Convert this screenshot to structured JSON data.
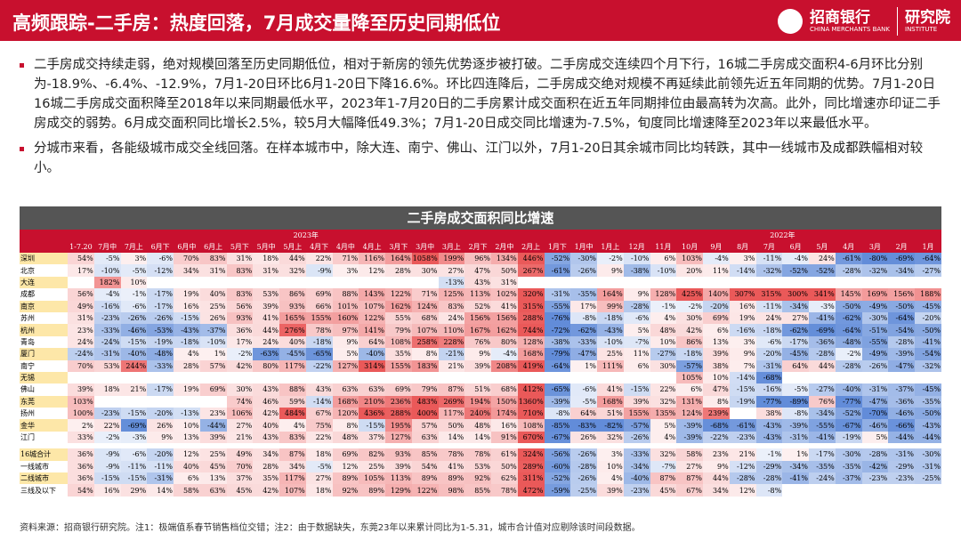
{
  "header": {
    "title": "高频跟踪-二手房：热度回落，7月成交量降至历史同期低位",
    "logo": {
      "name": "招商银行",
      "name_en": "CHINA MERCHANTS BANK",
      "dept": "研究院",
      "dept_en": "INSTITUTE"
    }
  },
  "bullets": [
    "二手房成交持续走弱，绝对规模回落至历史同期低位，相对于新房的领先优势逐步被打破。二手房成交连续四个月下行，16城二手房成交面积4-6月环比分别为-18.9%、-6.4%、-12.9%，7月1-20日环比6月1-20日下降16.6%。环比四连降后，二手房成交绝对规模不再延续此前领先近五年同期的优势。7月1-20日16城二手房成交面积降至2018年以来同期最低水平，2023年1-7月20日的二手房累计成交面积在近五年同期排位由最高转为次高。此外，同比增速亦印证二手房成交的弱势。6月成交面积同比增长2.5%，较5月大幅降低49.3%；7月1-20日成交同比增速为-7.5%，旬度同比增速降至2023年以来最低水平。",
    "分城市来看，各能级城市成交全线回落。在样本城市中，除大连、南宁、佛山、江门以外，7月1-20日其余城市同比均转跌，其中一线城市及成都跌幅相对较小。"
  ],
  "table": {
    "title": "二手房成交面积同比增速",
    "years": [
      "2023年",
      "2022年"
    ],
    "columns": [
      "1-7.20",
      "7月中",
      "7月上",
      "6月下",
      "6月中",
      "6月上",
      "5月下",
      "5月中",
      "5月上",
      "4月下",
      "4月中",
      "4月上",
      "3月下",
      "3月中",
      "3月上",
      "2月下",
      "2月中",
      "2月上",
      "1月下",
      "1月中",
      "1月上",
      "12月",
      "11月",
      "10月",
      "9月",
      "8月",
      "7月",
      "6月",
      "5月",
      "4月",
      "3月",
      "2月",
      "1月"
    ],
    "rows": [
      {
        "name": "深圳",
        "cells": [
          "54%",
          "-5%",
          "3%",
          "-6%",
          "70%",
          "83%",
          "31%",
          "18%",
          "44%",
          "22%",
          "71%",
          "116%",
          "164%",
          "1058%",
          "199%",
          "96%",
          "134%",
          "446%",
          "-52%",
          "-30%",
          "-2%",
          "-10%",
          "6%",
          "103%",
          "-4%",
          "3%",
          "-11%",
          "-4%",
          "24%",
          "-61%",
          "-80%",
          "-69%",
          "-64%"
        ]
      },
      {
        "name": "北京",
        "cells": [
          "17%",
          "-10%",
          "-5%",
          "-12%",
          "34%",
          "31%",
          "83%",
          "31%",
          "32%",
          "-9%",
          "3%",
          "12%",
          "28%",
          "30%",
          "27%",
          "47%",
          "50%",
          "267%",
          "-61%",
          "-26%",
          "9%",
          "-38%",
          "-10%",
          "20%",
          "11%",
          "-14%",
          "-32%",
          "-52%",
          "-52%",
          "-28%",
          "-32%",
          "-34%",
          "-27%"
        ]
      },
      {
        "name": "大连",
        "cells": [
          "",
          "182%",
          "10%",
          "",
          "",
          "",
          "",
          "",
          "",
          "",
          "",
          "",
          "",
          "",
          "-13%",
          "43%",
          "31%",
          "",
          "",
          "",
          "",
          "",
          "",
          "",
          "",
          "",
          "",
          "",
          "",
          "",
          "",
          "",
          ""
        ]
      },
      {
        "name": "成都",
        "cells": [
          "56%",
          "-4%",
          "-1%",
          "-17%",
          "19%",
          "40%",
          "83%",
          "53%",
          "86%",
          "69%",
          "88%",
          "143%",
          "122%",
          "71%",
          "125%",
          "113%",
          "102%",
          "320%",
          "-31%",
          "-35%",
          "164%",
          "9%",
          "128%",
          "425%",
          "140%",
          "307%",
          "315%",
          "300%",
          "341%",
          "145%",
          "169%",
          "156%",
          "188%"
        ]
      },
      {
        "name": "南京",
        "cells": [
          "49%",
          "-16%",
          "-6%",
          "-17%",
          "16%",
          "25%",
          "56%",
          "39%",
          "93%",
          "66%",
          "101%",
          "107%",
          "162%",
          "124%",
          "83%",
          "52%",
          "41%",
          "315%",
          "-55%",
          "17%",
          "99%",
          "-28%",
          "-1%",
          "-2%",
          "-20%",
          "16%",
          "-11%",
          "-34%",
          "-3%",
          "-50%",
          "-49%",
          "-50%",
          "-45%"
        ]
      },
      {
        "name": "苏州",
        "cells": [
          "31%",
          "-23%",
          "-26%",
          "-26%",
          "-15%",
          "26%",
          "93%",
          "41%",
          "165%",
          "155%",
          "160%",
          "122%",
          "55%",
          "68%",
          "24%",
          "156%",
          "156%",
          "288%",
          "-76%",
          "-8%",
          "-18%",
          "-6%",
          "4%",
          "30%",
          "69%",
          "19%",
          "24%",
          "27%",
          "-41%",
          "-62%",
          "-30%",
          "-64%",
          "-20%"
        ]
      },
      {
        "name": "杭州",
        "cells": [
          "23%",
          "-33%",
          "-46%",
          "-53%",
          "-43%",
          "-37%",
          "36%",
          "44%",
          "276%",
          "78%",
          "97%",
          "141%",
          "79%",
          "107%",
          "110%",
          "167%",
          "162%",
          "744%",
          "-72%",
          "-62%",
          "-43%",
          "5%",
          "48%",
          "42%",
          "6%",
          "-16%",
          "-18%",
          "-62%",
          "-69%",
          "-64%",
          "-51%",
          "-54%",
          "-50%"
        ]
      },
      {
        "name": "青岛",
        "cells": [
          "24%",
          "-24%",
          "-15%",
          "-19%",
          "-18%",
          "-10%",
          "17%",
          "24%",
          "40%",
          "-18%",
          "9%",
          "64%",
          "108%",
          "258%",
          "228%",
          "76%",
          "80%",
          "128%",
          "-38%",
          "-33%",
          "-10%",
          "-7%",
          "10%",
          "86%",
          "13%",
          "3%",
          "-6%",
          "-17%",
          "-36%",
          "-48%",
          "-55%",
          "-28%",
          "-41%"
        ]
      },
      {
        "name": "厦门",
        "cells": [
          "-24%",
          "-31%",
          "-40%",
          "-48%",
          "4%",
          "1%",
          "-2%",
          "-63%",
          "-45%",
          "-65%",
          "5%",
          "-40%",
          "35%",
          "8%",
          "-21%",
          "9%",
          "-4%",
          "168%",
          "-79%",
          "-47%",
          "25%",
          "11%",
          "-27%",
          "-18%",
          "39%",
          "9%",
          "-20%",
          "-45%",
          "-28%",
          "-2%",
          "-49%",
          "-39%",
          "-54%"
        ]
      },
      {
        "name": "南宁",
        "cells": [
          "70%",
          "53%",
          "244%",
          "-33%",
          "28%",
          "57%",
          "42%",
          "80%",
          "117%",
          "-22%",
          "127%",
          "314%",
          "155%",
          "183%",
          "21%",
          "39%",
          "208%",
          "419%",
          "-64%",
          "1%",
          "111%",
          "6%",
          "30%",
          "-57%",
          "38%",
          "7%",
          "-31%",
          "64%",
          "44%",
          "-28%",
          "-26%",
          "-47%",
          "-32%"
        ]
      },
      {
        "name": "无锡",
        "cells": [
          "",
          "",
          "",
          "",
          "",
          "",
          "",
          "",
          "",
          "",
          "",
          "",
          "",
          "",
          "",
          "",
          "",
          "",
          "",
          "",
          "",
          "",
          "",
          "105%",
          "10%",
          "-14%",
          "-68%",
          "",
          "",
          "",
          "",
          "",
          ""
        ]
      },
      {
        "name": "佛山",
        "cells": [
          "39%",
          "18%",
          "21%",
          "-17%",
          "19%",
          "69%",
          "30%",
          "43%",
          "88%",
          "43%",
          "63%",
          "63%",
          "69%",
          "79%",
          "87%",
          "51%",
          "68%",
          "412%",
          "-65%",
          "-6%",
          "41%",
          "-15%",
          "22%",
          "6%",
          "47%",
          "-15%",
          "-16%",
          "-5%",
          "-27%",
          "-40%",
          "-31%",
          "-37%",
          "-45%"
        ]
      },
      {
        "name": "东莞",
        "cells": [
          "103%",
          "",
          "",
          "",
          "",
          "",
          "74%",
          "46%",
          "59%",
          "-14%",
          "168%",
          "210%",
          "236%",
          "483%",
          "269%",
          "194%",
          "150%",
          "1360%",
          "-39%",
          "-5%",
          "168%",
          "39%",
          "32%",
          "131%",
          "8%",
          "-19%",
          "-77%",
          "-89%",
          "76%",
          "-77%",
          "-47%",
          "-36%",
          "-35%"
        ]
      },
      {
        "name": "扬州",
        "cells": [
          "100%",
          "-23%",
          "-15%",
          "-20%",
          "-13%",
          "23%",
          "106%",
          "42%",
          "484%",
          "67%",
          "120%",
          "436%",
          "288%",
          "400%",
          "117%",
          "240%",
          "174%",
          "710%",
          "-8%",
          "64%",
          "51%",
          "155%",
          "135%",
          "124%",
          "239%",
          "",
          "38%",
          "-8%",
          "-34%",
          "-52%",
          "-70%",
          "-46%",
          "-50%"
        ]
      },
      {
        "name": "金华",
        "cells": [
          "2%",
          "22%",
          "-69%",
          "26%",
          "10%",
          "-44%",
          "27%",
          "40%",
          "4%",
          "75%",
          "8%",
          "-15%",
          "195%",
          "57%",
          "50%",
          "48%",
          "16%",
          "108%",
          "-85%",
          "-83%",
          "-82%",
          "-57%",
          "5%",
          "-39%",
          "-68%",
          "-61%",
          "-43%",
          "-39%",
          "-55%",
          "-67%",
          "-46%",
          "-66%",
          "-43%"
        ]
      },
      {
        "name": "江门",
        "cells": [
          "33%",
          "-2%",
          "-3%",
          "9%",
          "13%",
          "39%",
          "21%",
          "43%",
          "83%",
          "22%",
          "48%",
          "37%",
          "127%",
          "63%",
          "14%",
          "14%",
          "91%",
          "670%",
          "-67%",
          "26%",
          "32%",
          "-26%",
          "4%",
          "-39%",
          "-22%",
          "-23%",
          "-43%",
          "-31%",
          "-41%",
          "-19%",
          "5%",
          "-44%",
          "-44%"
        ]
      },
      {
        "name": "16城合计",
        "cells": [
          "36%",
          "-9%",
          "-6%",
          "-20%",
          "12%",
          "25%",
          "49%",
          "34%",
          "87%",
          "18%",
          "69%",
          "82%",
          "93%",
          "85%",
          "78%",
          "78%",
          "61%",
          "324%",
          "-56%",
          "-26%",
          "3%",
          "-33%",
          "32%",
          "58%",
          "23%",
          "21%",
          "-1%",
          "1%",
          "-17%",
          "-30%",
          "-28%",
          "-31%",
          "-30%"
        ]
      },
      {
        "name": "一线城市",
        "cells": [
          "36%",
          "-9%",
          "-11%",
          "-11%",
          "40%",
          "45%",
          "70%",
          "28%",
          "34%",
          "-5%",
          "12%",
          "25%",
          "39%",
          "54%",
          "41%",
          "53%",
          "50%",
          "289%",
          "-60%",
          "-28%",
          "10%",
          "-34%",
          "-7%",
          "27%",
          "9%",
          "-12%",
          "-29%",
          "-34%",
          "-35%",
          "-35%",
          "-42%",
          "-29%",
          "-31%"
        ]
      },
      {
        "name": "二线城市",
        "cells": [
          "36%",
          "-15%",
          "-15%",
          "-31%",
          "6%",
          "13%",
          "37%",
          "35%",
          "117%",
          "27%",
          "89%",
          "105%",
          "113%",
          "89%",
          "89%",
          "92%",
          "62%",
          "311%",
          "-52%",
          "-26%",
          "4%",
          "-40%",
          "87%",
          "87%",
          "44%",
          "-28%",
          "-28%",
          "-41%",
          "-24%",
          "-37%",
          "-23%",
          "-23%",
          "-25%"
        ]
      },
      {
        "name": "三线及以下",
        "cells": [
          "54%",
          "16%",
          "29%",
          "14%",
          "58%",
          "63%",
          "45%",
          "42%",
          "107%",
          "18%",
          "92%",
          "89%",
          "129%",
          "122%",
          "98%",
          "85%",
          "78%",
          "472%",
          "-59%",
          "-25%",
          "39%",
          "-23%",
          "45%",
          "67%",
          "34%",
          "12%",
          "-8%",
          "",
          "",
          "",
          "",
          "",
          ""
        ]
      }
    ]
  },
  "footnote": "资料来源：招商银行研究院。注1：极端值系春节销售档位交错；注2：由于数据缺失，东莞23年以来累计同比为1-5.31，城市合计值对应剔除该时间段数据。"
}
